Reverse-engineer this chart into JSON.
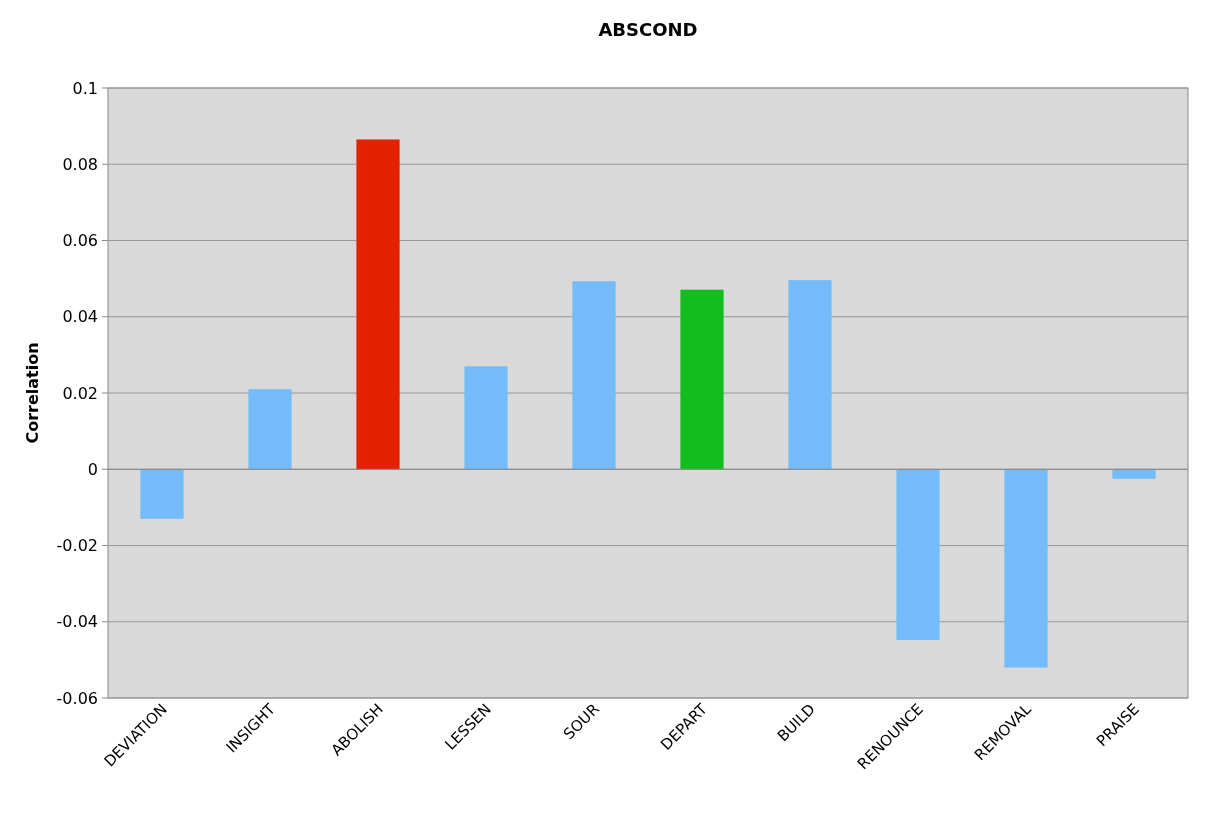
{
  "chart_data": {
    "type": "bar",
    "title": "ABSCOND",
    "ylabel": "Correlation",
    "categories": [
      "DEVIATION",
      "INSIGHT",
      "ABOLISH",
      "LESSEN",
      "SOUR",
      "DEPART",
      "BUILD",
      "RENOUNCE",
      "REMOVAL",
      "PRAISE"
    ],
    "values": [
      -0.013,
      0.021,
      0.0865,
      0.027,
      0.0493,
      0.0471,
      0.0496,
      -0.0448,
      -0.052,
      -0.0025
    ],
    "colors": [
      "#74bbfa",
      "#74bbfa",
      "#e52200",
      "#74bbfa",
      "#74bbfa",
      "#13bd1e",
      "#74bbfa",
      "#74bbfa",
      "#74bbfa",
      "#74bbfa"
    ],
    "ylim": [
      -0.06,
      0.1
    ],
    "yticks": [
      -0.06,
      -0.04,
      -0.02,
      0,
      0.02,
      0.04,
      0.06,
      0.08,
      0.1
    ],
    "grid": "y"
  }
}
